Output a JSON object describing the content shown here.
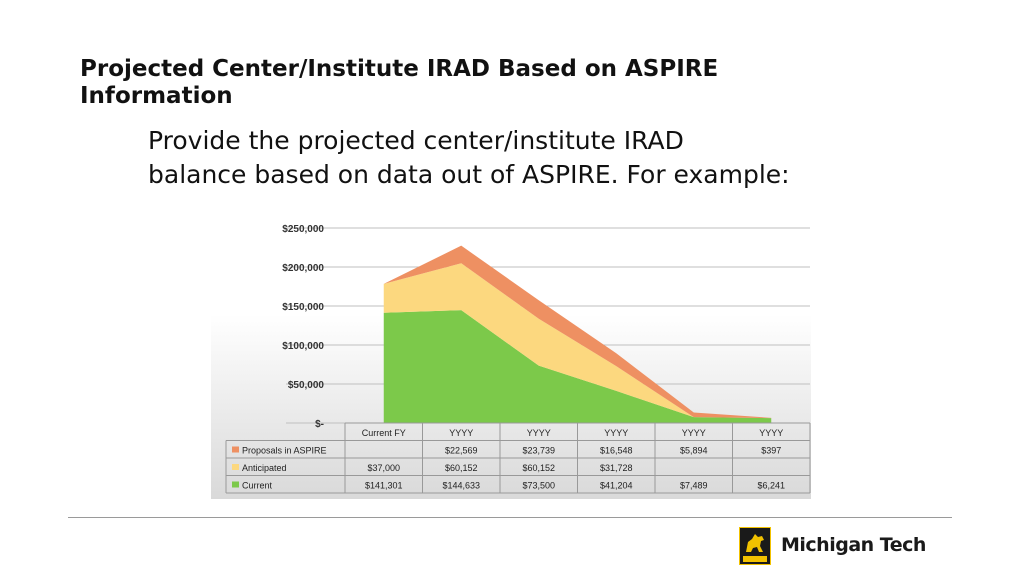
{
  "slide": {
    "title": "Projected Center/Institute IRAD Based on ASPIRE Information",
    "body_line1": "Provide the projected center/institute IRAD",
    "body_line2": "balance based on data out of ASPIRE. For example:"
  },
  "brand": {
    "logo_text": "Michigan Tech",
    "logo_year": "1885",
    "logo_icon": "husky-icon",
    "accent_color": "#f2c200"
  },
  "chart_data": {
    "type": "area",
    "stacked": true,
    "categories": [
      "Current FY",
      "YYYY",
      "YYYY",
      "YYYY",
      "YYYY",
      "YYYY"
    ],
    "y_ticks": [
      "$250,000",
      "$200,000",
      "$150,000",
      "$100,000",
      "$50,000",
      "$-"
    ],
    "ylim": [
      0,
      250000
    ],
    "grid": true,
    "legend": "data table below plot",
    "series": [
      {
        "name": "Current",
        "color": "#7cc94a",
        "values": [
          141301,
          144633,
          73500,
          41204,
          7489,
          6241
        ],
        "labels": [
          "$141,301",
          "$144,633",
          "$73,500",
          "$41,204",
          "$7,489",
          "$6,241"
        ]
      },
      {
        "name": "Anticipated",
        "color": "#fcd87f",
        "values": [
          37000,
          60152,
          60152,
          31728,
          0,
          0
        ],
        "labels": [
          "$37,000",
          "$60,152",
          "$60,152",
          "$31,728",
          "",
          ""
        ]
      },
      {
        "name": "Proposals in ASPIRE",
        "color": "#ee9062",
        "values": [
          0,
          22569,
          23739,
          16548,
          5894,
          397
        ],
        "labels": [
          "",
          "$22,569",
          "$23,739",
          "$16,548",
          "$5,894",
          "$397"
        ]
      }
    ],
    "table_row_order": [
      "Proposals in ASPIRE",
      "Anticipated",
      "Current"
    ]
  }
}
